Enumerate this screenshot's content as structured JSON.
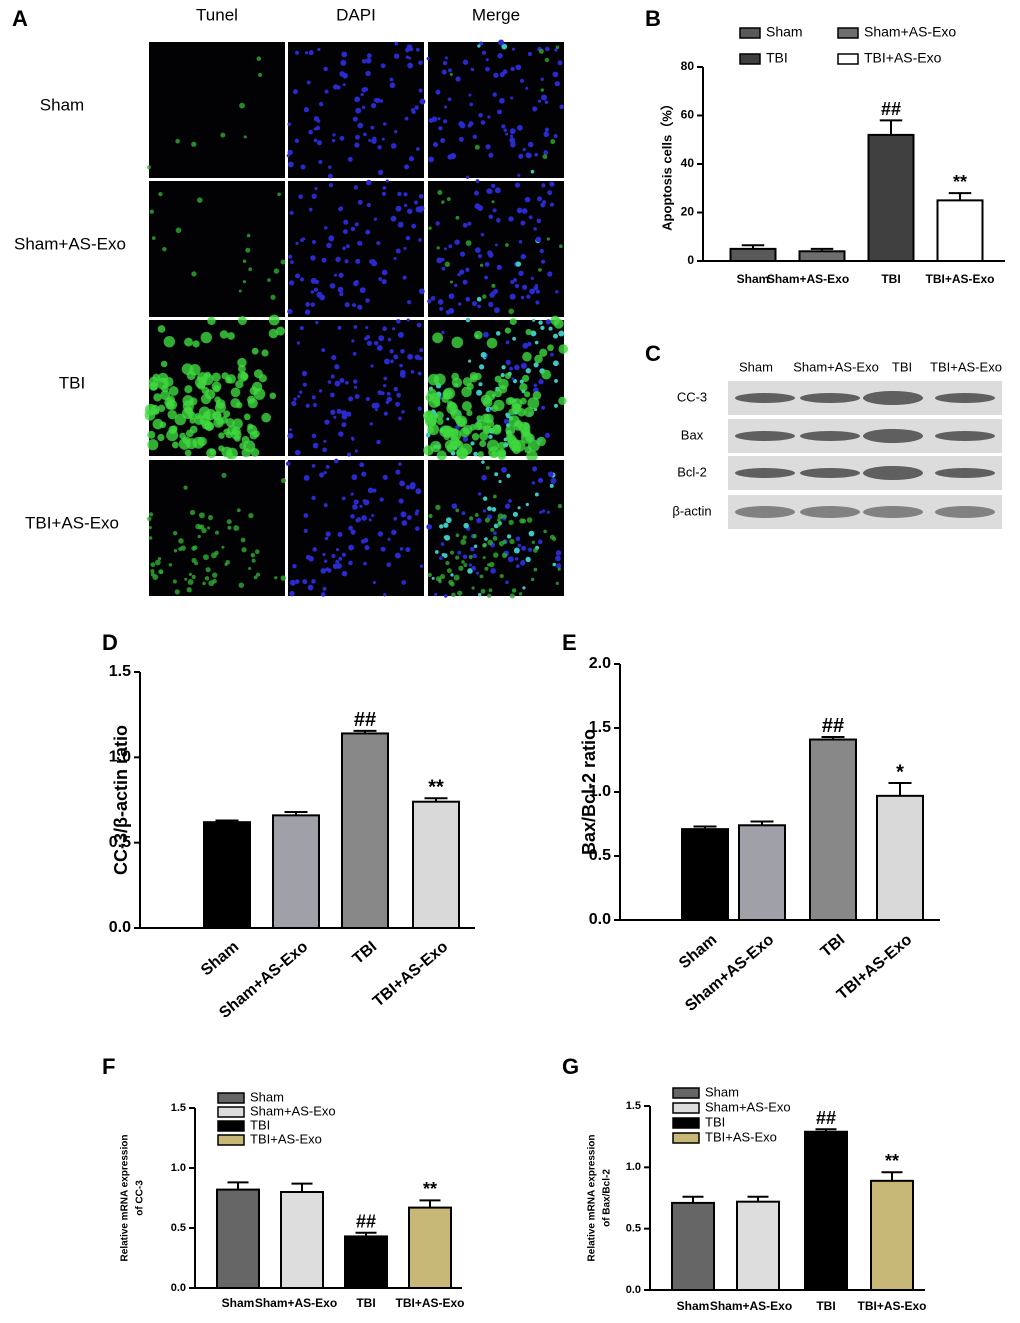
{
  "panel_a": {
    "label": "A",
    "columns": [
      "Tunel",
      "DAPI",
      "Merge"
    ],
    "rows": [
      "Sham",
      "Sham+AS-Exo",
      "TBI",
      "TBI+AS-Exo"
    ]
  },
  "panel_c": {
    "label": "C",
    "lanes": [
      "Sham",
      "Sham+AS-Exo",
      "TBI",
      "TBI+AS-Exo"
    ],
    "proteins": [
      "CC-3",
      "Bax",
      "Bcl-2",
      "β-actin"
    ]
  },
  "chart_data": [
    {
      "type": "bar",
      "panel_label": "B",
      "ylabel": [
        "Apoptosis cells（%）"
      ],
      "categories": [
        "Sham",
        "Sham+AS-Exo",
        "TBI",
        "TBI+AS-Exo"
      ],
      "values": [
        5,
        4,
        52,
        25
      ],
      "errors": [
        1.5,
        1,
        6,
        3
      ],
      "colors": [
        "#595959",
        "#6e6e6e",
        "#404040",
        "#ffffff"
      ],
      "legend": true,
      "ylim": [
        0,
        80
      ],
      "yticks": [
        0,
        20,
        40,
        60,
        80
      ],
      "annotations": [
        {
          "category": "TBI",
          "text": "##"
        },
        {
          "category": "TBI+AS-Exo",
          "text": "**"
        }
      ]
    },
    {
      "type": "bar",
      "panel_label": "D",
      "ylabel": [
        "CC-3/β-actin ratio"
      ],
      "categories": [
        "Sham",
        "Sham+AS-Exo",
        "TBI",
        "TBI+AS-Exo"
      ],
      "values": [
        0.62,
        0.66,
        1.14,
        0.74
      ],
      "errors": [
        0.01,
        0.02,
        0.015,
        0.02
      ],
      "colors": [
        "#000000",
        "#a0a0a8",
        "#888888",
        "#d9d9d9"
      ],
      "legend": false,
      "ylim": [
        0,
        1.5
      ],
      "yticks": [
        {
          "value": 0,
          "label": "0.0"
        },
        0.5,
        {
          "value": 1,
          "label": "1.0"
        },
        1.5
      ],
      "annotations": [
        {
          "category": "TBI",
          "text": "##"
        },
        {
          "category": "TBI+AS-Exo",
          "text": "**"
        }
      ]
    },
    {
      "type": "bar",
      "panel_label": "E",
      "ylabel": [
        "Bax/Bcl-2 ratio"
      ],
      "categories": [
        "Sham",
        "Sham+AS-Exo",
        "TBI",
        "TBI+AS-Exo"
      ],
      "values": [
        0.71,
        0.74,
        1.41,
        0.97
      ],
      "errors": [
        0.02,
        0.03,
        0.02,
        0.1
      ],
      "colors": [
        "#000000",
        "#a0a0a8",
        "#888888",
        "#d9d9d9"
      ],
      "legend": false,
      "ylim": [
        0,
        2
      ],
      "yticks": [
        {
          "value": 0,
          "label": "0.0"
        },
        0.5,
        {
          "value": 1,
          "label": "1.0"
        },
        1.5,
        {
          "value": 2,
          "label": "2.0"
        }
      ],
      "annotations": [
        {
          "category": "TBI",
          "text": "##"
        },
        {
          "category": "TBI+AS-Exo",
          "text": "*"
        }
      ]
    },
    {
      "type": "bar",
      "panel_label": "F",
      "ylabel": [
        "Relative mRNA expression",
        "of CC-3"
      ],
      "categories": [
        "Sham",
        "Sham+AS-Exo",
        "TBI",
        "TBI+AS-Exo"
      ],
      "values": [
        0.82,
        0.8,
        0.43,
        0.67
      ],
      "errors": [
        0.06,
        0.07,
        0.03,
        0.06
      ],
      "colors": [
        "#666666",
        "#dddddd",
        "#000000",
        "#c8b878"
      ],
      "legend": true,
      "ylim": [
        0,
        1.5
      ],
      "yticks": [
        {
          "value": 0,
          "label": "0.0"
        },
        0.5,
        {
          "value": 1,
          "label": "1.0"
        },
        1.5
      ],
      "annotations": [
        {
          "category": "TBI",
          "text": "##"
        },
        {
          "category": "TBI+AS-Exo",
          "text": "**"
        }
      ]
    },
    {
      "type": "bar",
      "panel_label": "G",
      "ylabel": [
        "Relative mRNA expression",
        "of Bax/Bcl-2"
      ],
      "categories": [
        "Sham",
        "Sham+AS-Exo",
        "TBI",
        "TBI+AS-Exo"
      ],
      "values": [
        0.71,
        0.72,
        1.29,
        0.89
      ],
      "errors": [
        0.05,
        0.04,
        0.02,
        0.07
      ],
      "colors": [
        "#666666",
        "#dddddd",
        "#000000",
        "#c8b878"
      ],
      "legend": true,
      "ylim": [
        0,
        1.5
      ],
      "yticks": [
        {
          "value": 0,
          "label": "0.0"
        },
        0.5,
        {
          "value": 1,
          "label": "1.0"
        },
        1.5
      ],
      "annotations": [
        {
          "category": "TBI",
          "text": "##"
        },
        {
          "category": "TBI+AS-Exo",
          "text": "**"
        }
      ]
    }
  ]
}
